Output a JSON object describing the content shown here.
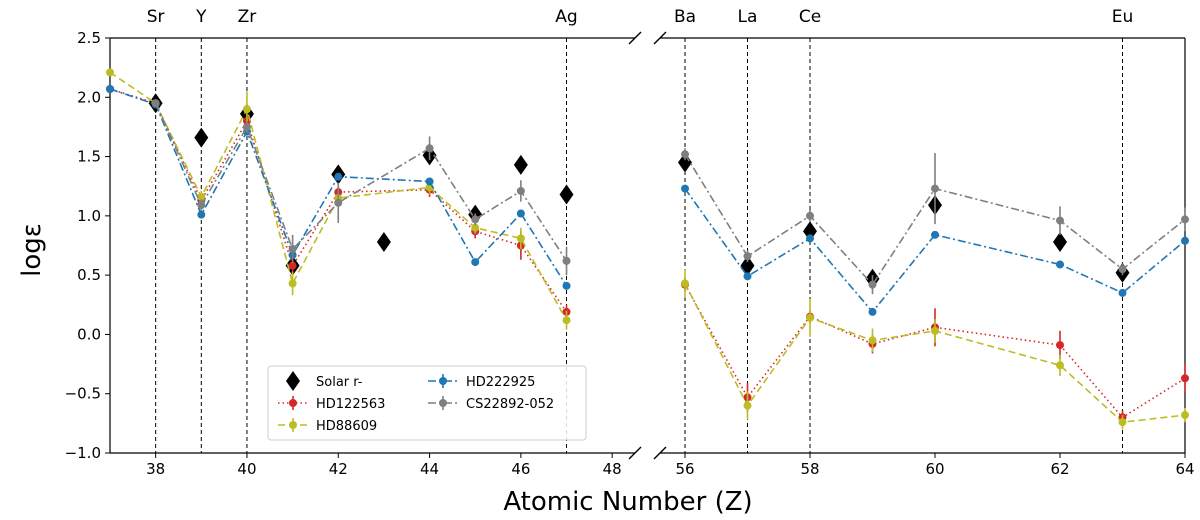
{
  "chart_data": {
    "type": "scatter",
    "title": "",
    "xlabel": "Atomic Number (Z)",
    "ylabel": "logε",
    "ylim": [
      -1.0,
      2.5
    ],
    "yticks": [
      -1.0,
      -0.5,
      0.0,
      0.5,
      1.0,
      1.5,
      2.0,
      2.5
    ],
    "ytick_labels": [
      "−1.0",
      "−0.5",
      "0.0",
      "0.5",
      "1.0",
      "1.5",
      "2.0",
      "2.5"
    ],
    "x_broken_axis": true,
    "panels": [
      {
        "xlim": [
          37,
          48.5
        ],
        "xticks": [
          38,
          40,
          42,
          44,
          46,
          48
        ]
      },
      {
        "xlim": [
          55.6,
          64
        ],
        "xticks": [
          56,
          58,
          60,
          62,
          64
        ]
      }
    ],
    "element_markers": [
      {
        "z": 38,
        "label": "Sr"
      },
      {
        "z": 39,
        "label": "Y"
      },
      {
        "z": 40,
        "label": "Zr"
      },
      {
        "z": 47,
        "label": "Ag"
      },
      {
        "z": 56,
        "label": "Ba"
      },
      {
        "z": 57,
        "label": "La"
      },
      {
        "z": 58,
        "label": "Ce"
      },
      {
        "z": 63,
        "label": "Eu"
      }
    ],
    "legend": {
      "position": "lower-left"
    },
    "series": [
      {
        "name": "Solar r-",
        "color": "#000000",
        "style": "marker-only",
        "marker": "diamond",
        "points": [
          {
            "x": 38,
            "y": 1.95
          },
          {
            "x": 39,
            "y": 1.66
          },
          {
            "x": 40,
            "y": 1.86
          },
          {
            "x": 41,
            "y": 0.58
          },
          {
            "x": 42,
            "y": 1.35
          },
          {
            "x": 43,
            "y": 0.78
          },
          {
            "x": 44,
            "y": 1.51
          },
          {
            "x": 45,
            "y": 1.01
          },
          {
            "x": 46,
            "y": 1.43
          },
          {
            "x": 47,
            "y": 1.18
          },
          {
            "x": 56,
            "y": 1.45
          },
          {
            "x": 57,
            "y": 0.58
          },
          {
            "x": 58,
            "y": 0.87
          },
          {
            "x": 59,
            "y": 0.47
          },
          {
            "x": 60,
            "y": 1.09
          },
          {
            "x": 62,
            "y": 0.78
          },
          {
            "x": 63,
            "y": 0.52
          }
        ]
      },
      {
        "name": "HD122563",
        "color": "#d62728",
        "style": "dotted",
        "marker": "circle",
        "points": [
          {
            "x": 37,
            "y": 2.07,
            "err": 0
          },
          {
            "x": 38,
            "y": 1.95,
            "err": 0.03
          },
          {
            "x": 39,
            "y": 1.13,
            "err": 0.05
          },
          {
            "x": 40,
            "y": 1.8,
            "err": 0.06
          },
          {
            "x": 41,
            "y": 0.58,
            "err": 0.07
          },
          {
            "x": 42,
            "y": 1.2,
            "err": 0.08
          },
          {
            "x": 44,
            "y": 1.22,
            "err": 0.06
          },
          {
            "x": 45,
            "y": 0.87,
            "err": 0.06
          },
          {
            "x": 46,
            "y": 0.75,
            "err": 0.12
          },
          {
            "x": 47,
            "y": 0.19,
            "err": 0.06
          },
          {
            "x": 56,
            "y": 0.42,
            "err": 0.06
          },
          {
            "x": 57,
            "y": -0.53,
            "err": 0.12
          },
          {
            "x": 58,
            "y": 0.15,
            "err": 0.05
          },
          {
            "x": 59,
            "y": -0.08,
            "err": 0.08
          },
          {
            "x": 60,
            "y": 0.06,
            "err": 0.16
          },
          {
            "x": 62,
            "y": -0.09,
            "err": 0.12
          },
          {
            "x": 63,
            "y": -0.7,
            "err": 0.06
          },
          {
            "x": 64,
            "y": -0.37,
            "err": 0.12
          }
        ]
      },
      {
        "name": "HD88609",
        "color": "#bcbd22",
        "style": "dashed",
        "marker": "circle",
        "points": [
          {
            "x": 37,
            "y": 2.21,
            "err": 0
          },
          {
            "x": 38,
            "y": 1.95,
            "err": 0.03
          },
          {
            "x": 39,
            "y": 1.16,
            "err": 0.05
          },
          {
            "x": 40,
            "y": 1.9,
            "err": 0.15
          },
          {
            "x": 41,
            "y": 0.43,
            "err": 0.1
          },
          {
            "x": 42,
            "y": 1.15,
            "err": 0.06
          },
          {
            "x": 44,
            "y": 1.24,
            "err": 0.06
          },
          {
            "x": 45,
            "y": 0.9,
            "err": 0.05
          },
          {
            "x": 46,
            "y": 0.81,
            "err": 0.09
          },
          {
            "x": 47,
            "y": 0.12,
            "err": 0.08
          },
          {
            "x": 56,
            "y": 0.43,
            "err": 0.12
          },
          {
            "x": 57,
            "y": -0.6,
            "err": 0.12
          },
          {
            "x": 58,
            "y": 0.14,
            "err": 0.16
          },
          {
            "x": 59,
            "y": -0.05,
            "err": 0.1
          },
          {
            "x": 60,
            "y": 0.03,
            "err": 0.1
          },
          {
            "x": 62,
            "y": -0.26,
            "err": 0.09
          },
          {
            "x": 63,
            "y": -0.74,
            "err": 0.06
          },
          {
            "x": 64,
            "y": -0.68,
            "err": 0.06
          }
        ]
      },
      {
        "name": "HD222925",
        "color": "#1f77b4",
        "style": "dashdot",
        "marker": "circle",
        "points": [
          {
            "x": 37,
            "y": 2.07,
            "err": 0
          },
          {
            "x": 38,
            "y": 1.94,
            "err": 0
          },
          {
            "x": 39,
            "y": 1.01,
            "err": 0
          },
          {
            "x": 40,
            "y": 1.71,
            "err": 0
          },
          {
            "x": 41,
            "y": 0.67,
            "err": 0
          },
          {
            "x": 42,
            "y": 1.33,
            "err": 0
          },
          {
            "x": 44,
            "y": 1.29,
            "err": 0
          },
          {
            "x": 45,
            "y": 0.61,
            "err": 0
          },
          {
            "x": 46,
            "y": 1.02,
            "err": 0
          },
          {
            "x": 47,
            "y": 0.41,
            "err": 0
          },
          {
            "x": 56,
            "y": 1.23,
            "err": 0
          },
          {
            "x": 57,
            "y": 0.49,
            "err": 0
          },
          {
            "x": 58,
            "y": 0.81,
            "err": 0
          },
          {
            "x": 59,
            "y": 0.19,
            "err": 0
          },
          {
            "x": 60,
            "y": 0.84,
            "err": 0
          },
          {
            "x": 62,
            "y": 0.59,
            "err": 0
          },
          {
            "x": 63,
            "y": 0.35,
            "err": 0
          },
          {
            "x": 64,
            "y": 0.79,
            "err": 0
          }
        ]
      },
      {
        "name": "CS22892-052",
        "color": "#7f7f7f",
        "style": "dashdot",
        "marker": "circle",
        "points": [
          {
            "x": 38,
            "y": 1.95,
            "err": 0.03
          },
          {
            "x": 39,
            "y": 1.09,
            "err": 0.05
          },
          {
            "x": 40,
            "y": 1.75,
            "err": 0.05
          },
          {
            "x": 41,
            "y": 0.72,
            "err": 0.12
          },
          {
            "x": 42,
            "y": 1.11,
            "err": 0.17
          },
          {
            "x": 44,
            "y": 1.57,
            "err": 0.1
          },
          {
            "x": 45,
            "y": 0.97,
            "err": 0.05
          },
          {
            "x": 46,
            "y": 1.21,
            "err": 0.09
          },
          {
            "x": 47,
            "y": 0.62,
            "err": 0.12
          },
          {
            "x": 56,
            "y": 1.52,
            "err": 0.05
          },
          {
            "x": 57,
            "y": 0.66,
            "err": 0.05
          },
          {
            "x": 58,
            "y": 1.0,
            "err": 0.05
          },
          {
            "x": 59,
            "y": 0.42,
            "err": 0.08
          },
          {
            "x": 60,
            "y": 1.23,
            "err": 0.3
          },
          {
            "x": 62,
            "y": 0.96,
            "err": 0.12
          },
          {
            "x": 63,
            "y": 0.55,
            "err": 0.05
          },
          {
            "x": 64,
            "y": 0.97,
            "err": 0.1
          }
        ]
      }
    ]
  }
}
